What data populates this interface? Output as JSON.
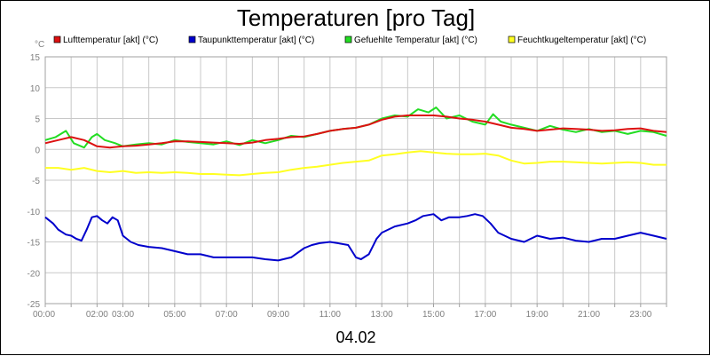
{
  "chart_data": {
    "type": "line",
    "title": "Temperaturen [pro Tag]",
    "ylabel": "°C",
    "xlabel": "04.02",
    "ylim": [
      -25,
      15
    ],
    "xlim": [
      0,
      24
    ],
    "y_ticks": [
      "15",
      "10",
      "5",
      "0",
      "-5",
      "-10",
      "-15",
      "-20",
      "-25"
    ],
    "y_tick_values": [
      15,
      10,
      5,
      0,
      -5,
      -10,
      -15,
      -20,
      -25
    ],
    "x_ticks": [
      "00:00",
      "02:00",
      "03:00",
      "05:00",
      "07:00",
      "09:00",
      "11:00",
      "13:00",
      "15:00",
      "17:00",
      "19:00",
      "21:00",
      "23:00"
    ],
    "x_tick_values": [
      0,
      2,
      3,
      5,
      7,
      9,
      11,
      13,
      15,
      17,
      19,
      21,
      23
    ],
    "grid": true,
    "legend_position": "top",
    "series": [
      {
        "name": "Lufttemperatur [akt] (°C)",
        "color": "#dd1111",
        "x": [
          0,
          0.5,
          1,
          1.5,
          2,
          2.5,
          3,
          3.5,
          4,
          4.5,
          5,
          5.5,
          6,
          6.5,
          7,
          7.5,
          8,
          8.5,
          9,
          9.5,
          10,
          10.5,
          11,
          11.5,
          12,
          12.5,
          13,
          13.5,
          14,
          14.5,
          15,
          15.5,
          16,
          16.5,
          17,
          17.5,
          18,
          18.5,
          19,
          19.5,
          20,
          20.5,
          21,
          21.5,
          22,
          22.5,
          23,
          23.5,
          24
        ],
        "values": [
          1,
          1.5,
          2,
          1.5,
          0.5,
          0.3,
          0.5,
          0.6,
          0.8,
          1,
          1.3,
          1.3,
          1.2,
          1.1,
          1,
          0.9,
          1.1,
          1.5,
          1.7,
          2,
          2.1,
          2.5,
          3,
          3.3,
          3.5,
          4,
          4.8,
          5.3,
          5.5,
          5.5,
          5.5,
          5.3,
          5,
          4.8,
          4.5,
          4,
          3.5,
          3.3,
          3,
          3.2,
          3.4,
          3.3,
          3.2,
          3,
          3.1,
          3.3,
          3.4,
          3,
          2.8
        ]
      },
      {
        "name": "Taupunkttemperatur [akt] (°C)",
        "color": "#0000cc",
        "x": [
          0,
          0.3,
          0.5,
          0.8,
          1,
          1.2,
          1.4,
          1.6,
          1.8,
          2,
          2.2,
          2.4,
          2.6,
          2.8,
          3,
          3.3,
          3.6,
          4,
          4.5,
          5,
          5.5,
          6,
          6.5,
          7,
          7.5,
          8,
          8.5,
          9,
          9.5,
          10,
          10.3,
          10.6,
          11,
          11.3,
          11.7,
          12,
          12.2,
          12.5,
          12.8,
          13,
          13.5,
          14,
          14.3,
          14.6,
          15,
          15.3,
          15.6,
          16,
          16.3,
          16.6,
          16.9,
          17.2,
          17.5,
          18,
          18.5,
          19,
          19.5,
          20,
          20.5,
          21,
          21.5,
          22,
          22.5,
          23,
          23.5,
          24
        ],
        "values": [
          -11,
          -12,
          -13,
          -13.8,
          -14,
          -14.5,
          -14.8,
          -13,
          -11,
          -10.8,
          -11.5,
          -12,
          -11,
          -11.5,
          -14,
          -15,
          -15.5,
          -15.8,
          -16,
          -16.5,
          -17,
          -17,
          -17.5,
          -17.5,
          -17.5,
          -17.5,
          -17.8,
          -18,
          -17.5,
          -16,
          -15.5,
          -15.2,
          -15,
          -15.2,
          -15.5,
          -17.5,
          -17.8,
          -17,
          -14.5,
          -13.5,
          -12.5,
          -12,
          -11.5,
          -10.8,
          -10.5,
          -11.5,
          -11,
          -11,
          -10.8,
          -10.5,
          -10.8,
          -12,
          -13.5,
          -14.5,
          -15,
          -14,
          -14.5,
          -14.3,
          -14.8,
          -15,
          -14.5,
          -14.5,
          -14,
          -13.5,
          -14,
          -14.5
        ]
      },
      {
        "name": "Gefuehlte Temperatur [akt] (°C)",
        "color": "#22dd22",
        "x": [
          0,
          0.4,
          0.8,
          1.1,
          1.5,
          1.8,
          2,
          2.3,
          2.7,
          3,
          3.5,
          4,
          4.5,
          5,
          5.5,
          6,
          6.5,
          7,
          7.5,
          8,
          8.5,
          9,
          9.5,
          10,
          10.5,
          11,
          11.5,
          12,
          12.5,
          13,
          13.5,
          14,
          14.4,
          14.8,
          15.1,
          15.5,
          16,
          16.5,
          17,
          17.3,
          17.6,
          18,
          18.5,
          19,
          19.5,
          20,
          20.5,
          21,
          21.5,
          22,
          22.5,
          23,
          23.5,
          24
        ],
        "values": [
          1.5,
          2,
          3,
          1,
          0.3,
          2,
          2.5,
          1.5,
          1,
          0.5,
          0.8,
          1,
          0.8,
          1.5,
          1.2,
          1,
          0.8,
          1.3,
          0.7,
          1.5,
          1,
          1.5,
          2.2,
          2,
          2.5,
          3,
          3.3,
          3.5,
          4,
          5,
          5.5,
          5.3,
          6.5,
          6,
          6.8,
          5,
          5.5,
          4.5,
          4,
          5.7,
          4.5,
          4,
          3.5,
          3,
          3.8,
          3.2,
          2.8,
          3.3,
          2.8,
          3,
          2.5,
          3,
          2.8,
          2.2
        ]
      },
      {
        "name": "Feuchtkugeltemperatur [akt] (°C)",
        "color": "#ffff22",
        "x": [
          0,
          0.5,
          1,
          1.5,
          2,
          2.5,
          3,
          3.5,
          4,
          4.5,
          5,
          5.5,
          6,
          6.5,
          7,
          7.5,
          8,
          8.5,
          9,
          9.5,
          10,
          10.5,
          11,
          11.5,
          12,
          12.5,
          13,
          13.5,
          14,
          14.5,
          15,
          15.5,
          16,
          16.5,
          17,
          17.5,
          18,
          18.5,
          19,
          19.5,
          20,
          20.5,
          21,
          21.5,
          22,
          22.5,
          23,
          23.5,
          24
        ],
        "values": [
          -3,
          -3,
          -3.3,
          -3,
          -3.5,
          -3.7,
          -3.5,
          -3.8,
          -3.7,
          -3.8,
          -3.7,
          -3.8,
          -4,
          -4,
          -4.1,
          -4.2,
          -4,
          -3.8,
          -3.7,
          -3.3,
          -3,
          -2.8,
          -2.5,
          -2.2,
          -2,
          -1.8,
          -1,
          -0.8,
          -0.5,
          -0.3,
          -0.5,
          -0.7,
          -0.8,
          -0.8,
          -0.7,
          -1,
          -1.8,
          -2.3,
          -2.2,
          -2,
          -2,
          -2.1,
          -2.2,
          -2.3,
          -2.2,
          -2.1,
          -2.2,
          -2.5,
          -2.5
        ]
      }
    ]
  }
}
